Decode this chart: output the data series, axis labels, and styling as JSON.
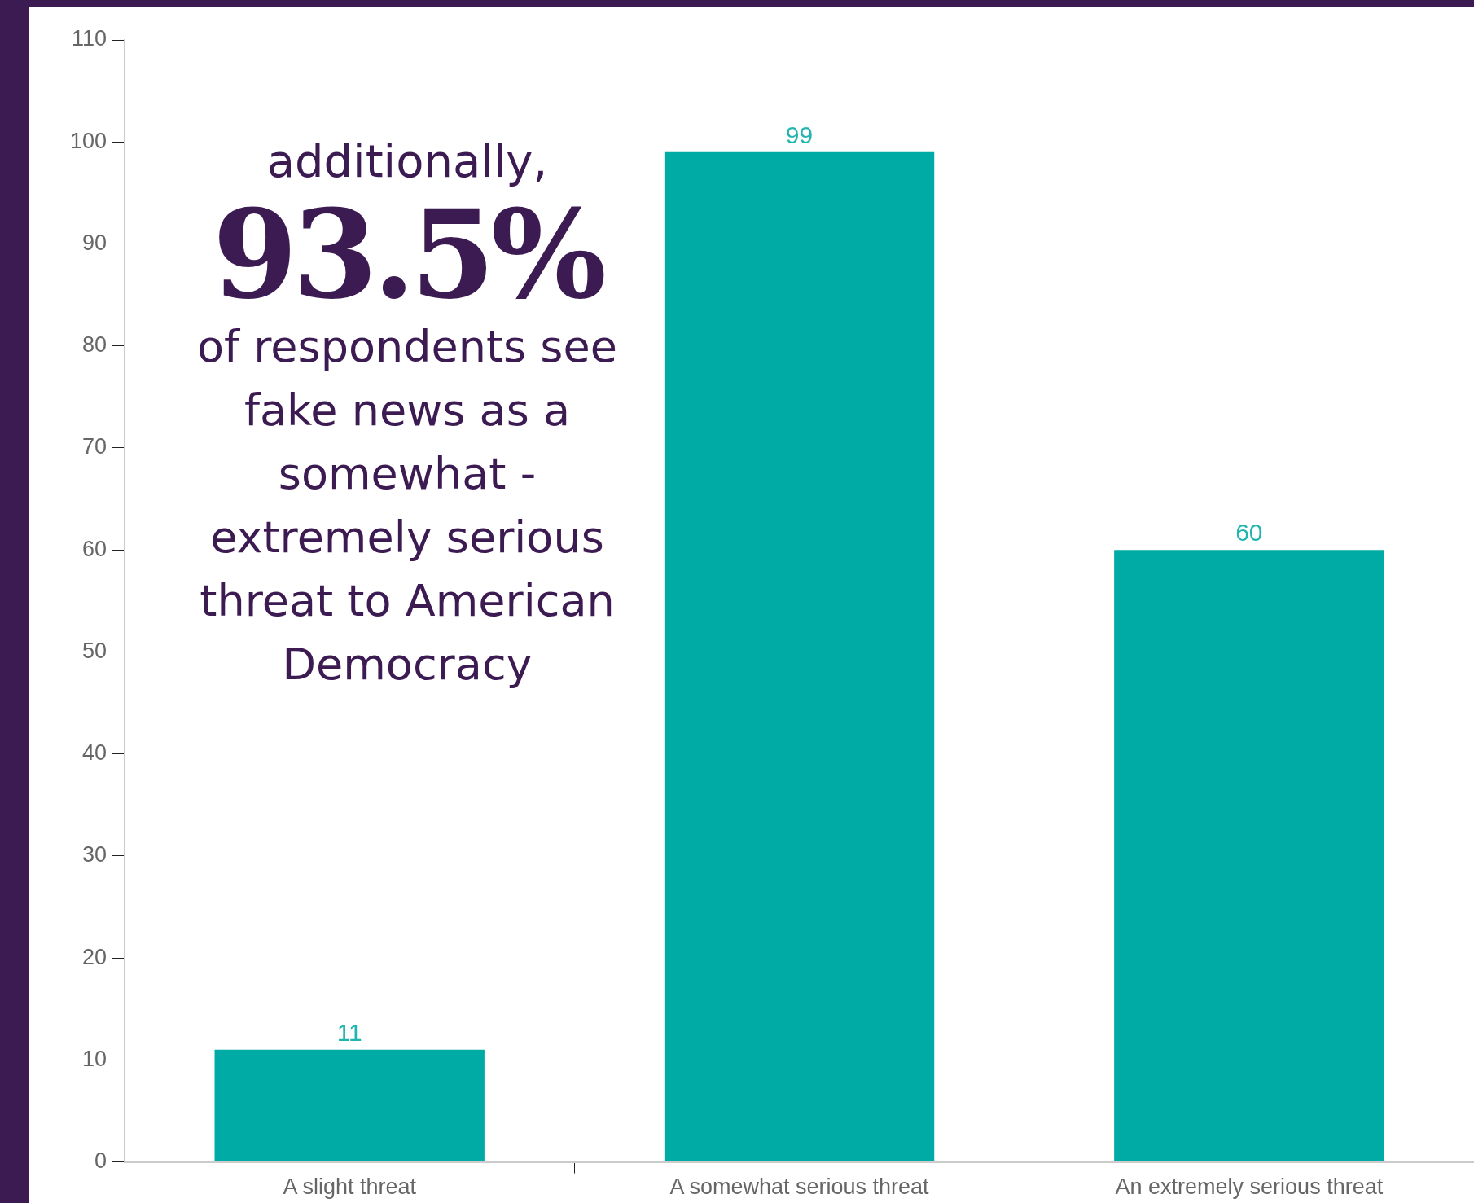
{
  "chart_data": {
    "type": "bar",
    "categories": [
      "A slight threat",
      "A somewhat serious threat",
      "An extremely serious threat"
    ],
    "values": [
      11,
      99,
      60
    ],
    "color": "#00aba5",
    "ylim": [
      0,
      110
    ],
    "yticks": [
      0,
      10,
      20,
      30,
      40,
      50,
      60,
      70,
      80,
      90,
      100,
      110
    ],
    "grid": false,
    "legend": false,
    "data_labels": true,
    "annotations": [
      "additionally,",
      "93.5%",
      "of respondents see fake news as a somewhat - extremely serious threat to American Democracy"
    ]
  }
}
